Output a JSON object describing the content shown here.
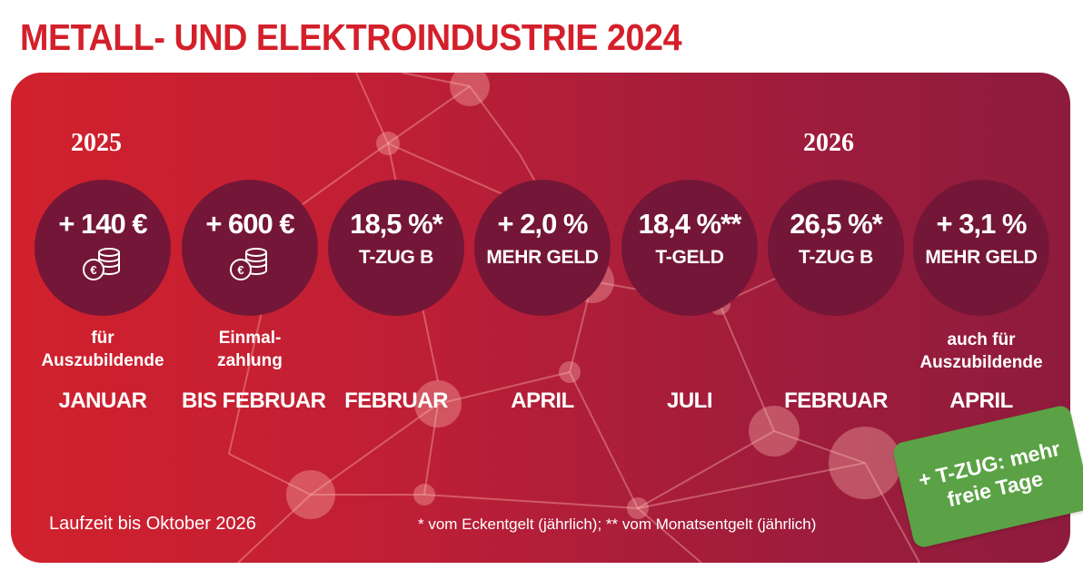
{
  "title": "METALL- UND ELEKTROINDUSTRIE 2024",
  "years": {
    "left": "2025",
    "right": "2026"
  },
  "items": [
    {
      "big": "+ 140 €",
      "small": "",
      "icon": "coins-euro-icon",
      "note_line1": "für",
      "note_line2": "Auszubildende",
      "month": "JANUAR"
    },
    {
      "big": "+ 600 €",
      "small": "",
      "icon": "coins-euro-icon",
      "note_line1": "Einmal-",
      "note_line2": "zahlung",
      "month": "BIS FEBRUAR"
    },
    {
      "big": "18,5 %*",
      "small": "T-ZUG B",
      "icon": "",
      "note_line1": "",
      "note_line2": "",
      "month": "FEBRUAR"
    },
    {
      "big": "+ 2,0 %",
      "small": "MEHR GELD",
      "icon": "",
      "note_line1": "",
      "note_line2": "",
      "month": "APRIL"
    },
    {
      "big": "18,4 %**",
      "small": "T-GELD",
      "icon": "",
      "note_line1": "",
      "note_line2": "",
      "month": "JULI"
    },
    {
      "big": "26,5 %*",
      "small": "T-ZUG B",
      "icon": "",
      "note_line1": "",
      "note_line2": "",
      "month": "FEBRUAR"
    },
    {
      "big": "+ 3,1 %",
      "small": "MEHR GELD",
      "icon": "",
      "note_line1": "auch für",
      "note_line2": "Auszubildende",
      "month": "APRIL"
    }
  ],
  "footer": {
    "runtime": "Laufzeit bis Oktober 2026",
    "footnote": "* vom Eckentgelt (jährlich); ** vom Monatsentgelt (jährlich)"
  },
  "badge": {
    "line1": "+ T-ZUG: mehr",
    "line2": "freie Tage"
  },
  "colors": {
    "title": "#d4202b",
    "panel_left": "#d1212d",
    "panel_right": "#8e1b3d",
    "circle": "#741637",
    "badge": "#5aa245",
    "text": "#ffffff"
  }
}
